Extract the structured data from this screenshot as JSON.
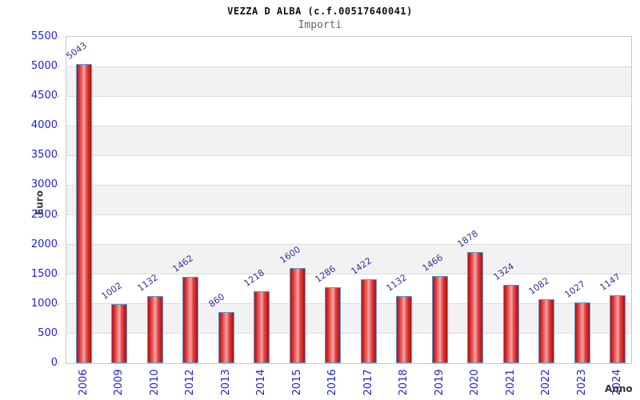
{
  "header": {
    "title": "VEZZA D ALBA (c.f.00517640041)",
    "subtitle": "Importi"
  },
  "chart_data": {
    "type": "bar",
    "title": "VEZZA D ALBA (c.f.00517640041)",
    "subtitle": "Importi",
    "xlabel": "Anno",
    "ylabel": "Euro",
    "categories": [
      "2006",
      "2009",
      "2010",
      "2012",
      "2013",
      "2014",
      "2015",
      "2016",
      "2017",
      "2018",
      "2019",
      "2020",
      "2021",
      "2022",
      "2023",
      "2024"
    ],
    "values": [
      5043,
      1002,
      1132,
      1462,
      860,
      1218,
      1600,
      1286,
      1422,
      1132,
      1466,
      1878,
      1324,
      1082,
      1027,
      1147
    ],
    "ylim": [
      0,
      5500
    ],
    "ytick_step": 500,
    "yticks": [
      0,
      500,
      1000,
      1500,
      2000,
      2500,
      3000,
      3500,
      4000,
      4500,
      5000,
      5500
    ],
    "grid": true,
    "legend_position": "none",
    "bar_value_labels_shown": true,
    "colors": {
      "bar_fill": "#d42a2a",
      "bar_border": "#5b9bd5",
      "tick_text": "#2323cc",
      "value_label_text": "#333399",
      "band_alt": "#f2f2f2",
      "gridline": "#dcdcdc",
      "frame": "#c9c9c9",
      "title_text": "#111111",
      "subtitle_text": "#666666",
      "axis_title_text": "#3a3a3a"
    }
  }
}
